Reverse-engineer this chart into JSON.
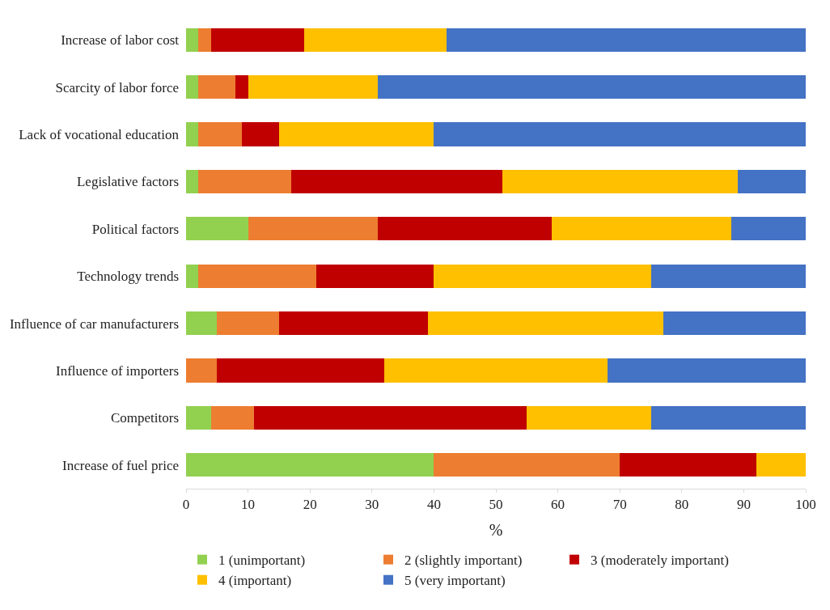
{
  "chart_data": {
    "type": "bar",
    "orientation": "horizontal",
    "stacked": true,
    "xlabel": "%",
    "xlim": [
      0,
      100
    ],
    "xticks": [
      0,
      10,
      20,
      30,
      40,
      50,
      60,
      70,
      80,
      90,
      100
    ],
    "legend": "bottom",
    "categories": [
      "Increase of labor cost",
      "Scarcity of labor force",
      "Lack of vocational education",
      "Legislative factors",
      "Political factors",
      "Technology trends",
      "Influence of car manufacturers",
      "Influence of importers",
      "Competitors",
      "Increase of fuel price"
    ],
    "series": [
      {
        "name": "1 (unimportant)",
        "color": "#92d050",
        "values": [
          2,
          2,
          2,
          2,
          10,
          2,
          5,
          0,
          4,
          40
        ]
      },
      {
        "name": "2 (slightly important)",
        "color": "#ed7d31",
        "values": [
          2,
          6,
          7,
          15,
          21,
          19,
          10,
          5,
          7,
          30
        ]
      },
      {
        "name": "3 (moderately important)",
        "color": "#c00000",
        "values": [
          15,
          2,
          6,
          34,
          28,
          19,
          24,
          27,
          44,
          22
        ]
      },
      {
        "name": "4 (important)",
        "color": "#ffc000",
        "values": [
          23,
          21,
          25,
          38,
          29,
          35,
          38,
          36,
          20,
          8
        ]
      },
      {
        "name": "5 (very important)",
        "color": "#4472c4",
        "values": [
          58,
          69,
          60,
          11,
          12,
          25,
          23,
          32,
          25,
          0
        ]
      }
    ]
  }
}
